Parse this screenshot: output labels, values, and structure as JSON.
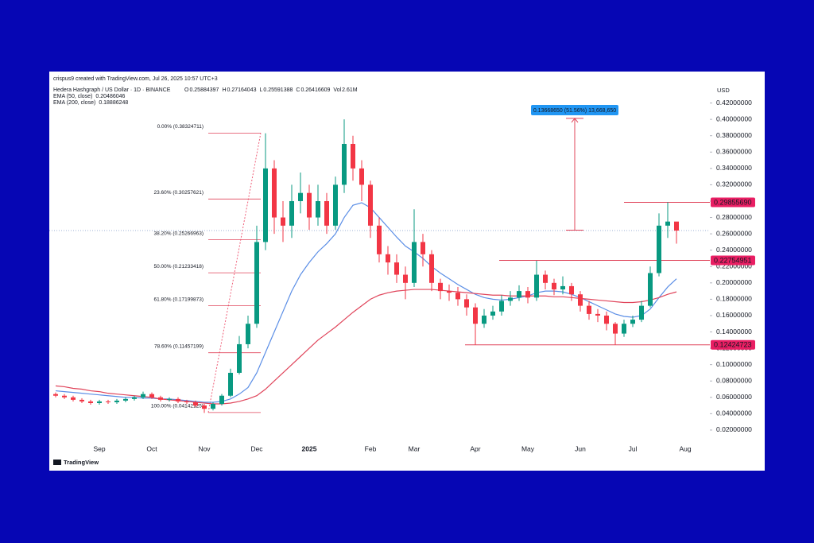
{
  "header": {
    "credit": "crispus9 created with TradingView.com, Jul 26, 2025 10:57 UTC+3",
    "symbol": "Hedera Hashgraph / US Dollar · 1D · BINANCE",
    "ohlc": [
      {
        "key": "O",
        "value": "0.25884397"
      },
      {
        "key": "H",
        "value": "0.27164043"
      },
      {
        "key": "L",
        "value": "0.25591388"
      },
      {
        "key": "C",
        "value": "0.26416609"
      },
      {
        "key": "Vol",
        "value": "2.61M"
      }
    ],
    "currency": "USD",
    "brand": "TradingView"
  },
  "chart_data": {
    "type": "candlestick",
    "categories": [
      null,
      null,
      null,
      null,
      null,
      "Sep",
      null,
      null,
      null,
      null,
      null,
      "Oct",
      null,
      null,
      null,
      null,
      null,
      "Nov",
      null,
      null,
      null,
      null,
      null,
      "Dec",
      null,
      null,
      null,
      null,
      null,
      "2025",
      null,
      null,
      null,
      null,
      null,
      null,
      "Feb",
      null,
      null,
      null,
      null,
      "Mar",
      null,
      null,
      null,
      null,
      null,
      null,
      "Apr",
      null,
      null,
      null,
      null,
      null,
      "May",
      null,
      null,
      null,
      null,
      null,
      "Jun",
      null,
      null,
      null,
      null,
      null,
      "Jul",
      null,
      null,
      null,
      null,
      null,
      "Aug"
    ],
    "open": [
      0.064,
      0.062,
      0.06,
      0.057,
      0.055,
      0.053,
      0.055,
      0.054,
      0.056,
      0.058,
      0.06,
      0.064,
      0.06,
      0.057,
      0.058,
      0.055,
      0.054,
      0.05,
      0.046,
      0.052,
      0.062,
      0.09,
      0.125,
      0.15,
      0.25,
      0.34,
      0.28,
      0.27,
      0.3,
      0.31,
      0.28,
      0.3,
      0.27,
      0.32,
      0.37,
      0.34,
      0.32,
      0.27,
      0.235,
      0.225,
      0.21,
      0.2,
      0.25,
      0.235,
      0.2,
      0.19,
      0.188,
      0.18,
      0.17,
      0.15,
      0.16,
      0.165,
      0.178,
      0.182,
      0.19,
      0.182,
      0.21,
      0.2,
      0.192,
      0.196,
      0.186,
      0.172,
      0.162,
      0.16,
      0.15,
      0.138,
      0.15,
      0.155,
      0.172,
      0.212,
      0.27,
      0.275,
      null
    ],
    "high": [
      0.066,
      0.064,
      0.062,
      0.059,
      0.057,
      0.057,
      0.057,
      0.058,
      0.06,
      0.062,
      0.067,
      0.066,
      0.062,
      0.06,
      0.06,
      0.057,
      0.056,
      0.052,
      0.054,
      0.064,
      0.095,
      0.135,
      0.16,
      0.27,
      0.383,
      0.35,
      0.3,
      0.32,
      0.335,
      0.32,
      0.32,
      0.31,
      0.33,
      0.4,
      0.38,
      0.35,
      0.325,
      0.28,
      0.245,
      0.235,
      0.22,
      0.29,
      0.26,
      0.24,
      0.205,
      0.198,
      0.195,
      0.186,
      0.175,
      0.168,
      0.172,
      0.185,
      0.19,
      0.197,
      0.195,
      0.227,
      0.215,
      0.205,
      0.208,
      0.2,
      0.19,
      0.178,
      0.168,
      0.165,
      0.152,
      0.155,
      0.16,
      0.178,
      0.22,
      0.285,
      0.2986,
      0.272,
      null
    ],
    "low": [
      0.06,
      0.058,
      0.055,
      0.053,
      0.051,
      0.051,
      0.052,
      0.052,
      0.054,
      0.056,
      0.058,
      0.058,
      0.055,
      0.055,
      0.053,
      0.052,
      0.048,
      0.041,
      0.044,
      0.05,
      0.06,
      0.088,
      0.12,
      0.145,
      0.24,
      0.26,
      0.25,
      0.255,
      0.285,
      0.265,
      0.27,
      0.26,
      0.265,
      0.31,
      0.325,
      0.3,
      0.255,
      0.225,
      0.21,
      0.2,
      0.18,
      0.195,
      0.22,
      0.19,
      0.18,
      0.178,
      0.172,
      0.16,
      0.124,
      0.145,
      0.155,
      0.16,
      0.172,
      0.178,
      0.175,
      0.178,
      0.192,
      0.185,
      0.186,
      0.178,
      0.165,
      0.155,
      0.152,
      0.142,
      0.124,
      0.134,
      0.146,
      0.152,
      0.17,
      0.208,
      0.255,
      0.248,
      null
    ],
    "close": [
      0.062,
      0.06,
      0.057,
      0.055,
      0.053,
      0.055,
      0.054,
      0.056,
      0.058,
      0.06,
      0.064,
      0.06,
      0.057,
      0.058,
      0.055,
      0.054,
      0.05,
      0.046,
      0.052,
      0.062,
      0.09,
      0.125,
      0.15,
      0.25,
      0.34,
      0.28,
      0.27,
      0.3,
      0.31,
      0.28,
      0.3,
      0.27,
      0.32,
      0.37,
      0.34,
      0.32,
      0.27,
      0.235,
      0.225,
      0.21,
      0.2,
      0.25,
      0.235,
      0.2,
      0.19,
      0.188,
      0.18,
      0.17,
      0.15,
      0.16,
      0.165,
      0.178,
      0.182,
      0.19,
      0.182,
      0.21,
      0.2,
      0.192,
      0.196,
      0.186,
      0.172,
      0.162,
      0.16,
      0.15,
      0.138,
      0.15,
      0.155,
      0.172,
      0.212,
      0.27,
      0.275,
      0.264,
      null
    ],
    "up_color": "#089981",
    "down_color": "#f23645",
    "series": [
      {
        "name": "EMA (50, close)",
        "legend_value": "0.20486046",
        "color": "#5b8ee6",
        "values": [
          0.068,
          0.067,
          0.066,
          0.065,
          0.064,
          0.063,
          0.062,
          0.061,
          0.06,
          0.06,
          0.059,
          0.059,
          0.058,
          0.058,
          0.057,
          0.056,
          0.055,
          0.054,
          0.054,
          0.055,
          0.058,
          0.064,
          0.072,
          0.09,
          0.115,
          0.14,
          0.165,
          0.19,
          0.21,
          0.225,
          0.238,
          0.248,
          0.26,
          0.28,
          0.295,
          0.298,
          0.292,
          0.28,
          0.268,
          0.256,
          0.245,
          0.238,
          0.23,
          0.22,
          0.212,
          0.205,
          0.198,
          0.192,
          0.186,
          0.182,
          0.18,
          0.179,
          0.18,
          0.182,
          0.184,
          0.188,
          0.19,
          0.19,
          0.189,
          0.186,
          0.182,
          0.177,
          0.172,
          0.167,
          0.162,
          0.159,
          0.158,
          0.16,
          0.168,
          0.182,
          0.195,
          0.205,
          null
        ]
      },
      {
        "name": "EMA (200, close)",
        "legend_value": "0.18886248",
        "color": "#e0445a",
        "values": [
          0.074,
          0.073,
          0.071,
          0.07,
          0.068,
          0.067,
          0.065,
          0.064,
          0.063,
          0.062,
          0.061,
          0.06,
          0.058,
          0.057,
          0.056,
          0.055,
          0.054,
          0.053,
          0.052,
          0.052,
          0.053,
          0.055,
          0.058,
          0.062,
          0.07,
          0.08,
          0.09,
          0.1,
          0.11,
          0.12,
          0.13,
          0.138,
          0.146,
          0.155,
          0.164,
          0.172,
          0.18,
          0.185,
          0.188,
          0.19,
          0.191,
          0.192,
          0.192,
          0.192,
          0.191,
          0.19,
          0.189,
          0.188,
          0.187,
          0.186,
          0.185,
          0.185,
          0.184,
          0.184,
          0.184,
          0.184,
          0.184,
          0.183,
          0.183,
          0.182,
          0.181,
          0.18,
          0.179,
          0.178,
          0.177,
          0.176,
          0.176,
          0.177,
          0.179,
          0.182,
          0.186,
          0.189,
          null
        ]
      }
    ],
    "fib_levels": [
      {
        "label": "0.00% (0.38324711)",
        "value": 0.38324711
      },
      {
        "label": "23.60% (0.30257621)",
        "value": 0.30257621
      },
      {
        "label": "38.20% (0.25266963)",
        "value": 0.25266963
      },
      {
        "label": "50.00% (0.21233418)",
        "value": 0.21233418
      },
      {
        "label": "61.80% (0.17199873)",
        "value": 0.17199873
      },
      {
        "label": "78.60% (0.11457199)",
        "value": 0.11457199
      },
      {
        "label": "100.00% (0.04142125)",
        "value": 0.04142125
      }
    ],
    "price_lines": [
      {
        "value": 0.2985569,
        "label": "0.29855690"
      },
      {
        "value": 0.22754951,
        "label": "0.22754951"
      },
      {
        "value": 0.12424723,
        "label": "0.12424723"
      }
    ],
    "measure": {
      "label": "0.13668650 (51.56%) 13,668,650",
      "from": 0.2645,
      "to": 0.4012
    },
    "ylim": [
      0,
      0.44
    ],
    "yticks": [
      {
        "value": 0.42,
        "label": "0.42000000"
      },
      {
        "value": 0.4,
        "label": "0.40000000"
      },
      {
        "value": 0.38,
        "label": "0.38000000"
      },
      {
        "value": 0.36,
        "label": "0.36000000"
      },
      {
        "value": 0.34,
        "label": "0.34000000"
      },
      {
        "value": 0.32,
        "label": "0.32000000"
      },
      {
        "value": 0.3,
        "label": "0.30000000"
      },
      {
        "value": 0.28,
        "label": "0.28000000"
      },
      {
        "value": 0.26,
        "label": "0.26000000"
      },
      {
        "value": 0.24,
        "label": "0.24000000"
      },
      {
        "value": 0.22,
        "label": "0.22000000"
      },
      {
        "value": 0.2,
        "label": "0.20000000"
      },
      {
        "value": 0.18,
        "label": "0.18000000"
      },
      {
        "value": 0.16,
        "label": "0.16000000"
      },
      {
        "value": 0.14,
        "label": "0.14000000"
      },
      {
        "value": 0.12,
        "label": "0.12000000"
      },
      {
        "value": 0.1,
        "label": "0.10000000"
      },
      {
        "value": 0.08,
        "label": "0.08000000"
      },
      {
        "value": 0.06,
        "label": "0.06000000"
      },
      {
        "value": 0.04,
        "label": "0.04000000"
      },
      {
        "value": 0.02,
        "label": "0.02000000"
      }
    ],
    "grid": false
  }
}
